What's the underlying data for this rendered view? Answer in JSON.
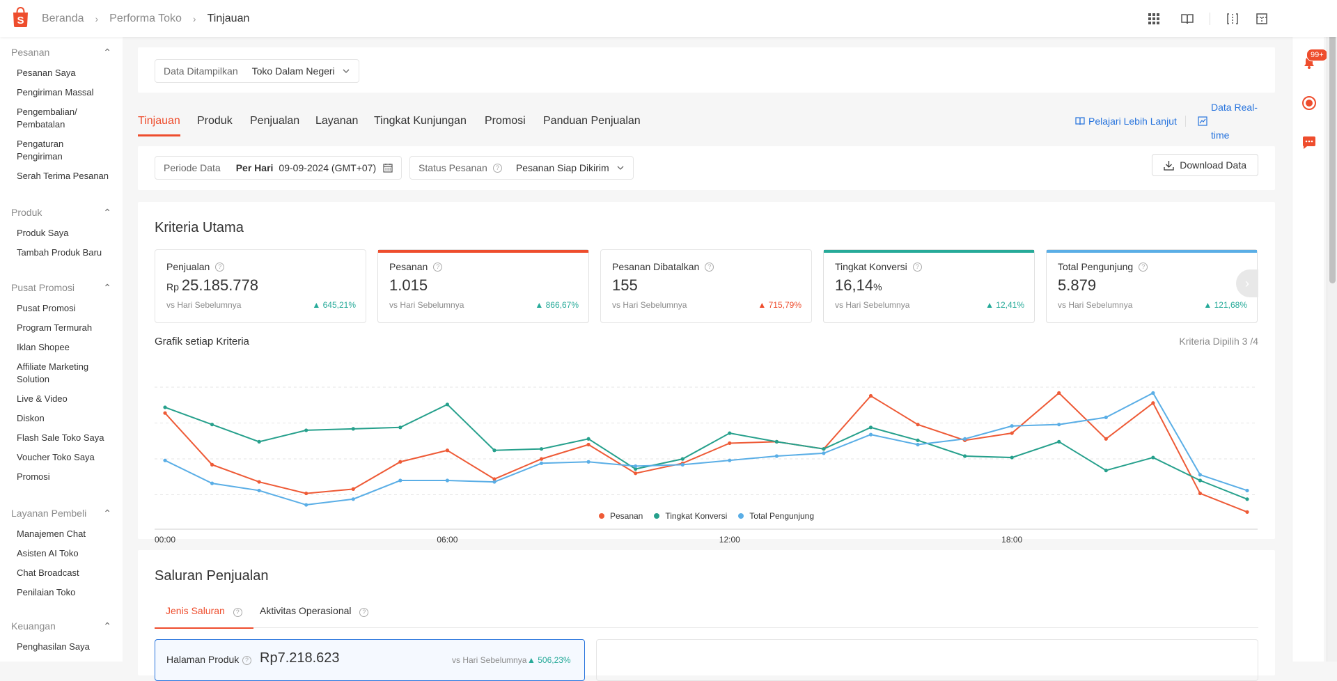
{
  "breadcrumb": [
    "Beranda",
    "Performa Toko",
    "Tinjauan"
  ],
  "icons": {
    "logo": "shopee-bag-icon",
    "apps": "grid-apps-icon",
    "guide": "book-icon",
    "compare": "columns-icon",
    "layout": "layout-icon",
    "bell": "bell-icon",
    "help": "help-center-icon",
    "chat": "chat-icon"
  },
  "notifications": {
    "badge": "99+"
  },
  "sidebar": [
    {
      "title": "Pesanan",
      "items": [
        "Pesanan Saya",
        "Pengiriman Massal",
        "Pengembalian/ Pembatalan",
        "Pengaturan Pengiriman",
        "Serah Terima Pesanan"
      ]
    },
    {
      "title": "Produk",
      "items": [
        "Produk Saya",
        "Tambah Produk Baru"
      ]
    },
    {
      "title": "Pusat Promosi",
      "items": [
        "Pusat Promosi",
        "Program Termurah",
        "Iklan Shopee",
        "Affiliate Marketing Solution",
        "Live & Video",
        "Diskon",
        "Flash Sale Toko Saya",
        "Voucher Toko Saya",
        "Promosi"
      ]
    },
    {
      "title": "Layanan Pembeli",
      "items": [
        "Manajemen Chat",
        "Asisten AI Toko",
        "Chat Broadcast",
        "Penilaian Toko"
      ]
    },
    {
      "title": "Keuangan",
      "items": [
        "Penghasilan Saya"
      ]
    }
  ],
  "data_filter": {
    "label": "Data Ditampilkan",
    "value": "Toko Dalam Negeri"
  },
  "tabs": [
    "Tinjauan",
    "Produk",
    "Penjualan",
    "Layanan",
    "Tingkat Kunjungan",
    "Promosi",
    "Panduan Penjualan"
  ],
  "links": {
    "learn_more": "Pelajari Lebih Lanjut",
    "realtime": "Data Real-time"
  },
  "period": {
    "label": "Periode Data",
    "mode": "Per Hari",
    "date": "09-09-2024 (GMT+07)"
  },
  "order_status": {
    "label": "Status Pesanan",
    "value": "Pesanan Siap Dikirim"
  },
  "download_label": "Download Data",
  "kriteria": {
    "title": "Kriteria Utama",
    "metrics": [
      {
        "title": "Penjualan",
        "prefix": "Rp",
        "value": "25.185.778",
        "suffix": "",
        "sub": "vs Hari Sebelumnya",
        "change": "645,21%",
        "trend": "up-green",
        "accent": ""
      },
      {
        "title": "Pesanan",
        "prefix": "",
        "value": "1.015",
        "suffix": "",
        "sub": "vs Hari Sebelumnya",
        "change": "866,67%",
        "trend": "up-green",
        "accent": "#ee4d2d"
      },
      {
        "title": "Pesanan Dibatalkan",
        "prefix": "",
        "value": "155",
        "suffix": "",
        "sub": "vs Hari Sebelumnya",
        "change": "715,79%",
        "trend": "up-red",
        "accent": ""
      },
      {
        "title": "Tingkat Konversi",
        "prefix": "",
        "value": "16,14",
        "suffix": "%",
        "sub": "vs Hari Sebelumnya",
        "change": "12,41%",
        "trend": "up-green",
        "accent": "#26aa99"
      },
      {
        "title": "Total Pengunjung",
        "prefix": "",
        "value": "5.879",
        "suffix": "",
        "sub": "vs Hari Sebelumnya",
        "change": "121,68%",
        "trend": "up-green",
        "accent": "#5aaee6"
      }
    ],
    "chart_title": "Grafik setiap Kriteria",
    "selected": "Kriteria Dipilih 3 /4"
  },
  "chart_data": {
    "type": "line",
    "x": [
      "00:00",
      "01:00",
      "02:00",
      "03:00",
      "04:00",
      "05:00",
      "06:00",
      "07:00",
      "08:00",
      "09:00",
      "10:00",
      "11:00",
      "12:00",
      "13:00",
      "14:00",
      "15:00",
      "16:00",
      "17:00",
      "18:00",
      "19:00",
      "20:00",
      "21:00",
      "22:00",
      "23:00"
    ],
    "xticks": [
      "00:00",
      "06:00",
      "12:00",
      "18:00"
    ],
    "ylim": [
      0,
      100
    ],
    "grid": true,
    "legend": "bottom",
    "series": [
      {
        "name": "Pesanan",
        "color": "#ee5a36",
        "values": [
          80,
          44,
          32,
          24,
          27,
          46,
          54,
          34,
          48,
          58,
          38,
          45,
          59,
          60,
          55,
          92,
          72,
          61,
          66,
          94,
          62,
          87,
          24,
          11
        ]
      },
      {
        "name": "Tingkat Konversi",
        "color": "#26a08c",
        "values": [
          84,
          72,
          60,
          68,
          69,
          70,
          86,
          54,
          55,
          62,
          41,
          48,
          66,
          60,
          55,
          70,
          61,
          50,
          49,
          60,
          40,
          49,
          33,
          20
        ]
      },
      {
        "name": "Total Pengunjung",
        "color": "#5aaee6",
        "values": [
          47,
          31,
          26,
          16,
          20,
          33,
          33,
          32,
          45,
          46,
          43,
          44,
          47,
          50,
          52,
          65,
          58,
          62,
          71,
          72,
          77,
          94,
          37,
          26
        ]
      }
    ]
  },
  "saluran": {
    "title": "Saluran Penjualan",
    "tabs": [
      "Jenis Saluran",
      "Aktivitas Operasional"
    ],
    "item_label": "Halaman Produk",
    "item_value": "Rp7.218.623",
    "item_sub": "vs Hari Sebelumnya",
    "item_change": "506,23%"
  }
}
